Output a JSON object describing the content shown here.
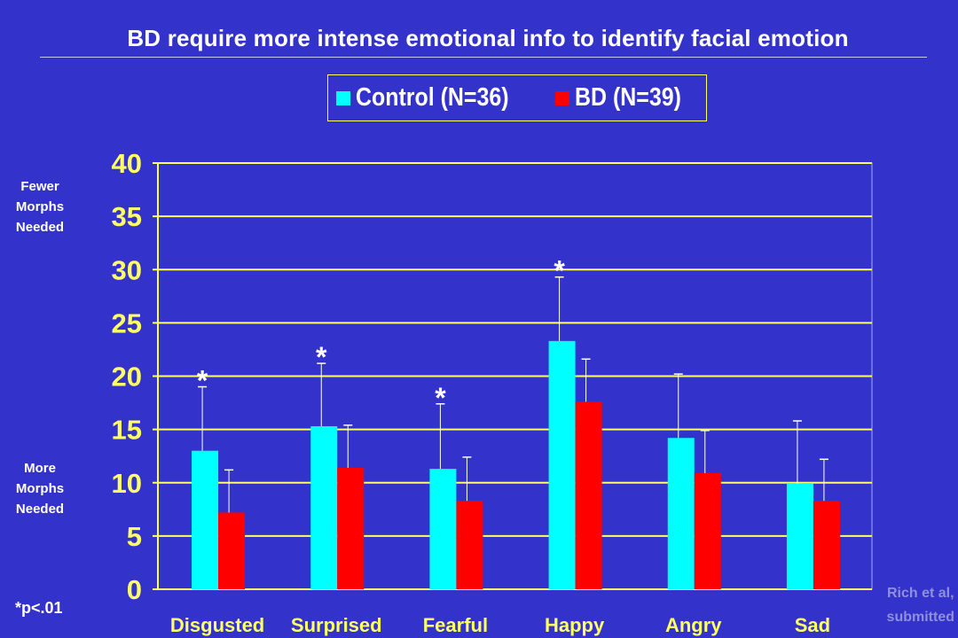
{
  "title": "BD require more intense emotional info to identify facial emotion",
  "side_labels": {
    "top": [
      "Fewer",
      "Morphs",
      "Needed"
    ],
    "bottom": [
      "More",
      "Morphs",
      "Needed"
    ]
  },
  "footnote": "*p<.01",
  "credit": [
    "Rich et al,",
    "submitted"
  ],
  "colors": {
    "background": "#3333cc",
    "axis": "#ffff66",
    "control": "#00ffff",
    "bd": "#ff0000"
  },
  "chart_data": {
    "type": "bar",
    "categories": [
      "Disgusted",
      "Surprised",
      "Fearful",
      "Happy",
      "Angry",
      "Sad"
    ],
    "series": [
      {
        "name": "Control (N=36)",
        "values": [
          13.0,
          15.3,
          11.3,
          23.3,
          14.2,
          9.9
        ],
        "error_upper": [
          19.0,
          21.2,
          17.4,
          29.3,
          20.2,
          15.8
        ]
      },
      {
        "name": "BD (N=39)",
        "values": [
          7.2,
          11.4,
          8.3,
          17.6,
          10.9,
          8.3
        ],
        "error_upper": [
          11.2,
          15.4,
          12.4,
          21.6,
          14.9,
          12.2
        ]
      }
    ],
    "significant": [
      "*",
      "*",
      "*",
      "*",
      "",
      ""
    ],
    "ylim": [
      0,
      40
    ],
    "yticks": [
      "0",
      "5",
      "10",
      "15",
      "20",
      "25",
      "30",
      "35",
      "40"
    ],
    "grid": true,
    "legend_position": "top-center"
  }
}
